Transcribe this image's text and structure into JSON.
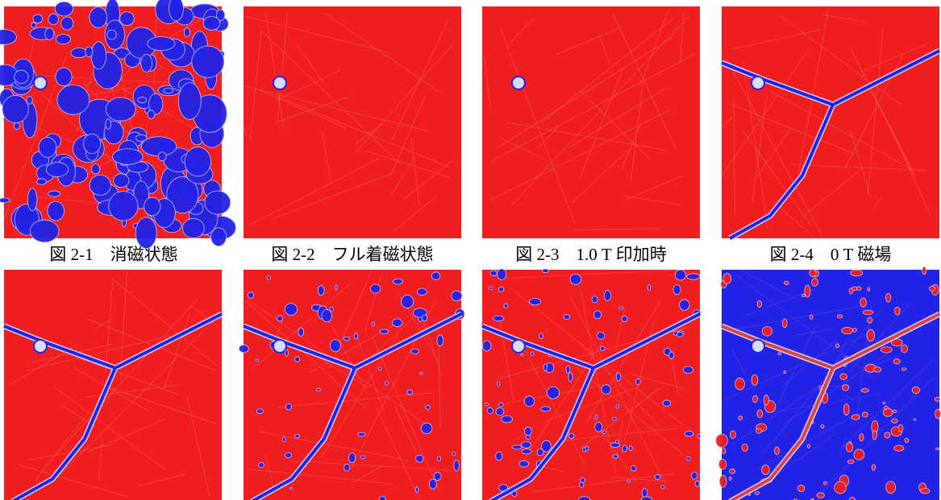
{
  "captions": [
    "図 2-1　消磁状態",
    "図 2-2　フル着磁状態",
    "図 2-3　1.0 T 印加時",
    "図 2-4　0 T 磁場"
  ]
}
